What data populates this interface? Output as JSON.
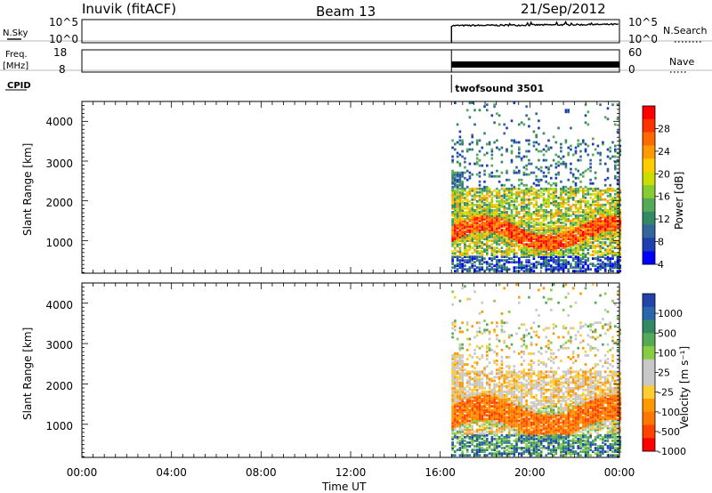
{
  "header": {
    "station": "Inuvik (fitACF)",
    "beam": "Beam 13",
    "date": "21/Sep/2012"
  },
  "panels": {
    "nsky": {
      "label": "N.Sky",
      "ticks": [
        "10^5",
        "10^0"
      ],
      "right_label": "N.Search",
      "right_ticks": [
        "10^5",
        "10^0"
      ]
    },
    "freq": {
      "label_1": "Freq.",
      "label_2": "[MHz]",
      "ticks": [
        "18",
        "8"
      ],
      "right_label": "Nave",
      "right_ticks": [
        "60",
        "0"
      ]
    },
    "cpid": {
      "label": "CPID",
      "program": "twofsound 3501"
    }
  },
  "x_axis": {
    "label": "Time UT",
    "ticks": [
      "00:00",
      "04:00",
      "08:00",
      "12:00",
      "16:00",
      "20:00",
      "00:00"
    ]
  },
  "power_panel": {
    "ylabel": "Slant Range [km]",
    "yticks": [
      "1000",
      "2000",
      "3000",
      "4000"
    ],
    "colorbar_label": "Power [dB]",
    "colorbar_ticks": [
      "28",
      "24",
      "20",
      "16",
      "12",
      "8",
      "4"
    ],
    "colors": [
      "#ff0000",
      "#ff3300",
      "#ff6a00",
      "#ff9900",
      "#ffcc00",
      "#ccdd00",
      "#88cc33",
      "#55aa55",
      "#338866",
      "#336699",
      "#1f3fb0",
      "#0000ff"
    ]
  },
  "velocity_panel": {
    "ylabel": "Slant Range [km]",
    "yticks": [
      "1000",
      "2000",
      "3000",
      "4000"
    ],
    "colorbar_label": "Velocity [m s⁻¹]",
    "colorbar_ticks": [
      "1000",
      "500",
      "100",
      "25",
      "-25",
      "-100",
      "-500",
      "-1000"
    ],
    "colors": [
      "#2244aa",
      "#2a66aa",
      "#338866",
      "#55aa55",
      "#88cc44",
      "#c8c8c8",
      "#c8c8c8",
      "#ffcc33",
      "#ff9900",
      "#ff7700",
      "#ff4400",
      "#ff0000"
    ]
  },
  "chart_data": [
    {
      "type": "line",
      "title": "Beam 13",
      "series": [
        {
          "name": "N.Sky",
          "x": [
            "16:30",
            "18:00",
            "20:00",
            "22:00",
            "24:00"
          ],
          "y_log10": [
            4.0,
            4.0,
            4.1,
            4.2,
            4.3
          ]
        }
      ],
      "xlabel": "",
      "ylabel": "N.Sky",
      "x_range": [
        "00:00",
        "24:00"
      ],
      "y_range": [
        "10^0",
        "10^5"
      ]
    },
    {
      "type": "line",
      "series": [
        {
          "name": "Freq.",
          "x": [
            "16:30",
            "24:00"
          ],
          "y": [
            11,
            11
          ]
        }
      ],
      "ylabel": "Freq. [MHz]",
      "y_range": [
        8,
        18
      ],
      "annotation": "twofsound 3501"
    },
    {
      "type": "heatmap",
      "quantity": "Power [dB]",
      "x_range_hours": [
        0,
        24
      ],
      "y_range_km": [
        180,
        4500
      ],
      "data_start_UT": "16:30",
      "colorbar_range": [
        0,
        30
      ],
      "features": [
        {
          "range_km": [
            600,
            1300
          ],
          "power_dB": 26
        },
        {
          "range_km": [
            1300,
            2200
          ],
          "power_dB": 14
        },
        {
          "range_km": [
            2200,
            3500
          ],
          "power_dB": 8
        }
      ]
    },
    {
      "type": "heatmap",
      "quantity": "Velocity [m s-1]",
      "x_range_hours": [
        0,
        24
      ],
      "y_range_km": [
        180,
        4500
      ],
      "data_start_UT": "16:30",
      "colorbar_range": [
        -1000,
        1000
      ],
      "features": [
        {
          "range_km": [
            600,
            1500
          ],
          "velocity": -100
        },
        {
          "range_km": [
            1500,
            2600
          ],
          "velocity": 0
        },
        {
          "range_km": [
            300,
            800
          ],
          "velocity": 100
        }
      ]
    }
  ]
}
